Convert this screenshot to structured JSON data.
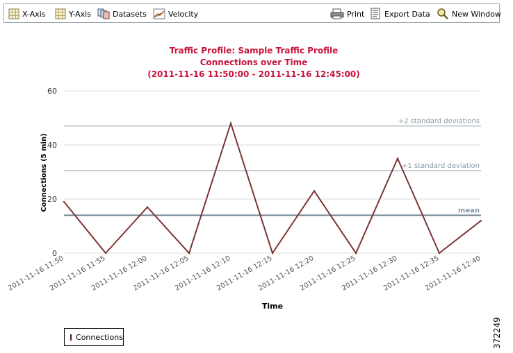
{
  "toolbar": {
    "items": [
      {
        "label": "X-Axis",
        "icon": "x-axis-icon"
      },
      {
        "label": "Y-Axis",
        "icon": "y-axis-icon"
      },
      {
        "label": "Datasets",
        "icon": "datasets-icon"
      },
      {
        "label": "Velocity",
        "icon": "velocity-icon"
      },
      {
        "label": "Print",
        "icon": "printer-icon"
      },
      {
        "label": "Export Data",
        "icon": "export-icon"
      },
      {
        "label": "New Window",
        "icon": "magnifier-icon"
      }
    ]
  },
  "chart_data": {
    "type": "line",
    "title": [
      "Traffic Profile: Sample Traffic Profile",
      "Connections over Time",
      "(2011-11-16 11:50:00 - 2011-11-16 12:45:00)"
    ],
    "xlabel": "Time",
    "ylabel": "Connections (5 min)",
    "categories": [
      "2011-11-16 11:50",
      "2011-11-16 11:55",
      "2011-11-16 12:00",
      "2011-11-16 12:05",
      "2011-11-16 12:10",
      "2011-11-16 12:15",
      "2011-11-16 12:20",
      "2011-11-16 12:25",
      "2011-11-16 12:30",
      "2011-11-16 12:35",
      "2011-11-16 12:40"
    ],
    "yticks": [
      0,
      20,
      40,
      60
    ],
    "ylim": [
      0,
      60
    ],
    "grid": true,
    "series": [
      {
        "name": "Connections",
        "values": [
          19,
          0,
          17,
          0,
          48,
          0,
          23,
          0,
          35,
          0,
          12
        ]
      }
    ],
    "reference_lines": [
      {
        "label": "mean",
        "value": 14.0
      },
      {
        "label": "+1 standard deviation",
        "value": 30.5
      },
      {
        "label": "+2 standard deviations",
        "value": 47.0
      }
    ],
    "legend_position": "bottom-left"
  },
  "colors": {
    "title": "#c8143c",
    "series": "#7b3434",
    "reference_line": "#8c9ca4",
    "grid": "#dddddd"
  },
  "figure_id": "372249"
}
